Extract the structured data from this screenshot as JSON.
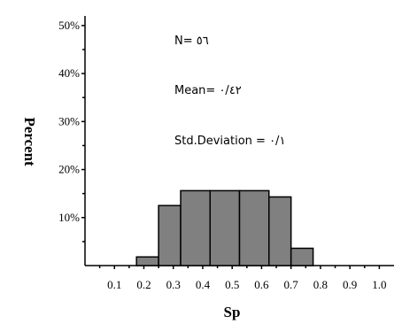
{
  "chart_data": {
    "type": "bar",
    "categories": [
      "0.2",
      "0.3",
      "0.4",
      "0.5",
      "0.6",
      "0.7",
      "0.75"
    ],
    "bin_edges": [
      0.175,
      0.25,
      0.325,
      0.425,
      0.525,
      0.625,
      0.7,
      0.775
    ],
    "values": [
      1.8,
      12.5,
      15.6,
      15.6,
      15.6,
      14.3,
      3.6
    ],
    "bar_color": "#808080",
    "bar_edge_color": "#000000",
    "xlabel": "Sp",
    "ylabel": "Percent",
    "xlim": [
      0.0,
      1.05
    ],
    "ylim": [
      0,
      52
    ],
    "xticks": [
      "0.1",
      "0.2",
      "0.3",
      "0.4",
      "0.5",
      "0.6",
      "0.7",
      "0.8",
      "0.9",
      "1.0"
    ],
    "yticks": [
      "10%",
      "20%",
      "30%",
      "40%",
      "50%"
    ],
    "grid": false,
    "annotations": [
      "N= ٥٦",
      "Mean= ٠/٤٢",
      "Std.Deviation = ٠/١"
    ]
  }
}
